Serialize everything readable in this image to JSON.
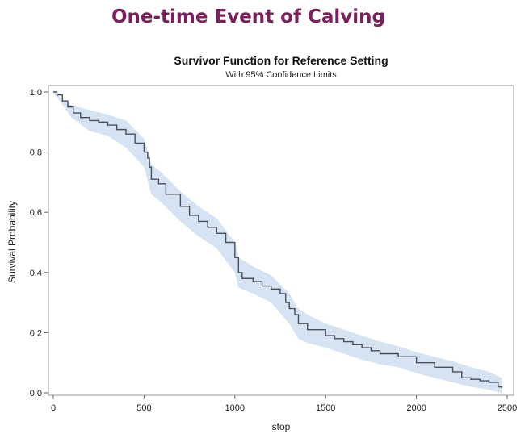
{
  "slide": {
    "title": "One-time Event of Calving"
  },
  "chart_data": {
    "type": "line",
    "title": "Survivor Function for Reference Setting",
    "subtitle": "With 95% Confidence Limits",
    "xlabel": "stop",
    "ylabel": "Survival Probability",
    "xlim": [
      0,
      2500
    ],
    "ylim": [
      0,
      1.0
    ],
    "xticks": [
      0,
      500,
      1000,
      1500,
      2000,
      2500
    ],
    "yticks": [
      0.0,
      0.2,
      0.4,
      0.6,
      0.8,
      1.0
    ],
    "ytick_labels": [
      "0.0",
      "0.2",
      "0.4",
      "0.6",
      "0.8",
      "1.0"
    ],
    "grid": false,
    "colors": {
      "line": "#4a4f5c",
      "band": "#d6e3f2",
      "title_accent": "#7a1f5c",
      "frame": "#9a9a9a"
    },
    "series": [
      {
        "values": [
          [
            0,
            1.0
          ],
          [
            20,
            0.99
          ],
          [
            50,
            0.97
          ],
          [
            80,
            0.95
          ],
          [
            110,
            0.93
          ],
          [
            150,
            0.915
          ],
          [
            200,
            0.905
          ],
          [
            250,
            0.9
          ],
          [
            300,
            0.89
          ],
          [
            350,
            0.875
          ],
          [
            400,
            0.86
          ],
          [
            450,
            0.83
          ],
          [
            500,
            0.8
          ],
          [
            520,
            0.78
          ],
          [
            530,
            0.75
          ],
          [
            540,
            0.71
          ],
          [
            580,
            0.695
          ],
          [
            620,
            0.66
          ],
          [
            700,
            0.62
          ],
          [
            750,
            0.59
          ],
          [
            800,
            0.57
          ],
          [
            850,
            0.55
          ],
          [
            900,
            0.53
          ],
          [
            950,
            0.5
          ],
          [
            1000,
            0.45
          ],
          [
            1020,
            0.4
          ],
          [
            1040,
            0.38
          ],
          [
            1100,
            0.37
          ],
          [
            1150,
            0.355
          ],
          [
            1200,
            0.345
          ],
          [
            1250,
            0.33
          ],
          [
            1280,
            0.3
          ],
          [
            1300,
            0.28
          ],
          [
            1330,
            0.26
          ],
          [
            1350,
            0.23
          ],
          [
            1400,
            0.21
          ],
          [
            1500,
            0.19
          ],
          [
            1550,
            0.18
          ],
          [
            1600,
            0.17
          ],
          [
            1650,
            0.16
          ],
          [
            1700,
            0.15
          ],
          [
            1750,
            0.14
          ],
          [
            1800,
            0.13
          ],
          [
            1900,
            0.12
          ],
          [
            2000,
            0.1
          ],
          [
            2100,
            0.085
          ],
          [
            2200,
            0.07
          ],
          [
            2250,
            0.05
          ],
          [
            2300,
            0.045
          ],
          [
            2350,
            0.04
          ],
          [
            2400,
            0.035
          ],
          [
            2450,
            0.02
          ],
          [
            2470,
            0.015
          ]
        ],
        "ci_lower": [
          [
            0,
            1.0
          ],
          [
            100,
            0.915
          ],
          [
            200,
            0.87
          ],
          [
            300,
            0.855
          ],
          [
            400,
            0.815
          ],
          [
            500,
            0.75
          ],
          [
            540,
            0.66
          ],
          [
            600,
            0.63
          ],
          [
            700,
            0.57
          ],
          [
            800,
            0.52
          ],
          [
            900,
            0.48
          ],
          [
            1000,
            0.4
          ],
          [
            1020,
            0.35
          ],
          [
            1100,
            0.33
          ],
          [
            1200,
            0.3
          ],
          [
            1300,
            0.23
          ],
          [
            1350,
            0.18
          ],
          [
            1400,
            0.165
          ],
          [
            1500,
            0.15
          ],
          [
            1600,
            0.13
          ],
          [
            1700,
            0.11
          ],
          [
            1800,
            0.095
          ],
          [
            1900,
            0.085
          ],
          [
            2000,
            0.065
          ],
          [
            2100,
            0.05
          ],
          [
            2200,
            0.035
          ],
          [
            2300,
            0.02
          ],
          [
            2400,
            0.01
          ],
          [
            2470,
            0.0
          ]
        ],
        "ci_upper": [
          [
            0,
            1.0
          ],
          [
            100,
            0.955
          ],
          [
            200,
            0.94
          ],
          [
            300,
            0.925
          ],
          [
            400,
            0.905
          ],
          [
            500,
            0.845
          ],
          [
            540,
            0.76
          ],
          [
            600,
            0.73
          ],
          [
            700,
            0.67
          ],
          [
            800,
            0.62
          ],
          [
            900,
            0.58
          ],
          [
            1000,
            0.5
          ],
          [
            1020,
            0.45
          ],
          [
            1100,
            0.42
          ],
          [
            1200,
            0.39
          ],
          [
            1300,
            0.33
          ],
          [
            1350,
            0.28
          ],
          [
            1400,
            0.26
          ],
          [
            1500,
            0.23
          ],
          [
            1600,
            0.21
          ],
          [
            1700,
            0.19
          ],
          [
            1800,
            0.17
          ],
          [
            1900,
            0.155
          ],
          [
            2000,
            0.135
          ],
          [
            2100,
            0.12
          ],
          [
            2200,
            0.105
          ],
          [
            2300,
            0.085
          ],
          [
            2400,
            0.07
          ],
          [
            2470,
            0.05
          ]
        ]
      }
    ]
  }
}
